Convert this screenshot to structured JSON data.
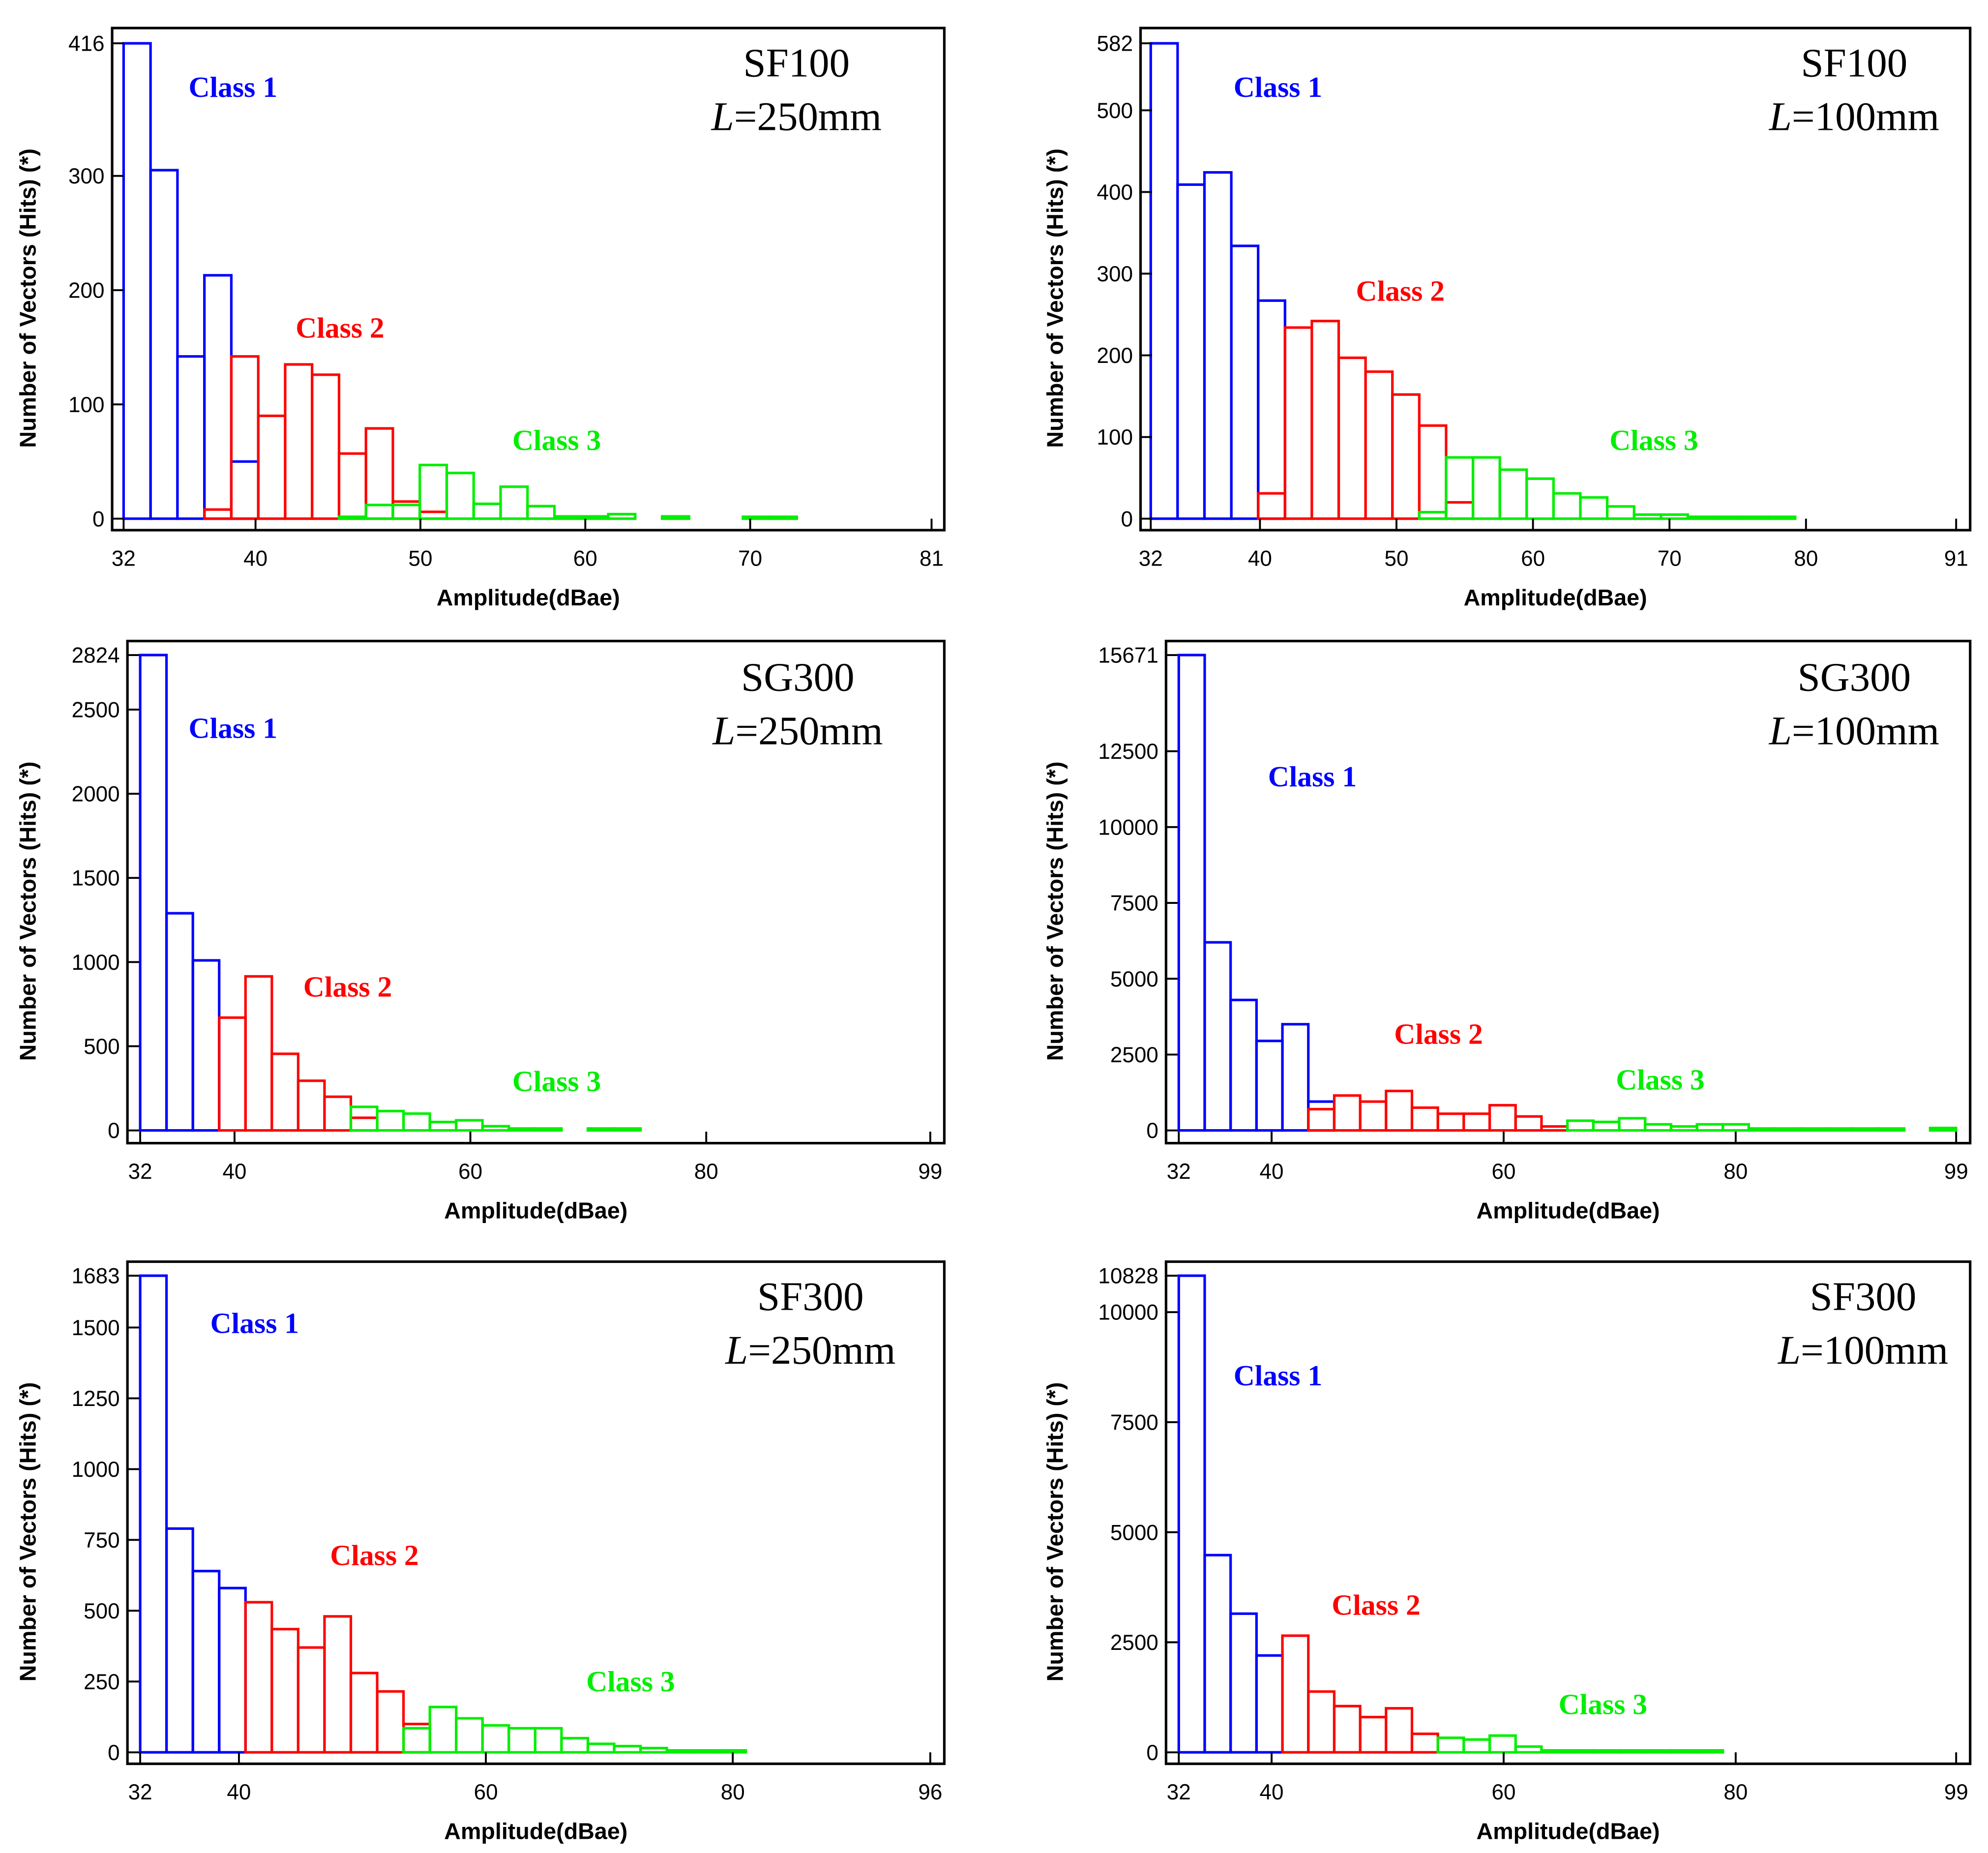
{
  "colors": {
    "class1": "#0000ff",
    "class2": "#ff0000",
    "class3": "#00ee00",
    "axis": "#000000"
  },
  "chart_data": [
    {
      "type": "bar",
      "title": "SF100",
      "length_var": "L",
      "length_value": "=250mm",
      "xlabel": "Amplitude(dBae)",
      "ylabel": "Number of Vectors (Hits) (*)",
      "xlim": [
        32,
        81
      ],
      "ylim": [
        0,
        416
      ],
      "bin_width": 1.633,
      "xticks": [
        "32",
        "40",
        "50",
        "60",
        "70",
        "81"
      ],
      "yticks": [
        "0",
        "100",
        "200",
        "300",
        "416"
      ],
      "series": [
        {
          "name": "Class 1",
          "color": "#0000ff",
          "values": [
            416,
            305,
            142,
            213,
            50
          ]
        },
        {
          "name": "Class 2",
          "color": "#ff0000",
          "values": [
            0,
            0,
            0,
            8,
            142,
            90,
            135,
            126,
            57,
            79,
            15,
            6
          ]
        },
        {
          "name": "Class 3",
          "color": "#00ee00",
          "values": [
            0,
            0,
            0,
            0,
            0,
            0,
            0,
            0,
            1,
            12,
            12,
            47,
            40,
            13,
            28,
            11,
            2,
            2,
            4,
            0,
            2,
            0,
            0,
            1,
            1
          ]
        }
      ]
    },
    {
      "type": "bar",
      "title": "SF100",
      "length_var": "L",
      "length_value": "=100mm",
      "xlabel": "Amplitude(dBae)",
      "ylabel": "Number of Vectors (Hits) (*)",
      "xlim": [
        32,
        91
      ],
      "ylim": [
        0,
        582
      ],
      "bin_width": 1.967,
      "xticks": [
        "32",
        "40",
        "50",
        "60",
        "70",
        "80",
        "91"
      ],
      "yticks": [
        "0",
        "100",
        "200",
        "300",
        "400",
        "500",
        "582"
      ],
      "series": [
        {
          "name": "Class 1",
          "color": "#0000ff",
          "values": [
            582,
            409,
            424,
            334,
            267
          ]
        },
        {
          "name": "Class 2",
          "color": "#ff0000",
          "values": [
            0,
            0,
            0,
            0,
            31,
            234,
            242,
            197,
            180,
            152,
            114,
            20
          ]
        },
        {
          "name": "Class 3",
          "color": "#00ee00",
          "values": [
            0,
            0,
            0,
            0,
            0,
            0,
            0,
            0,
            0,
            0,
            8,
            75,
            75,
            60,
            49,
            31,
            26,
            15,
            5,
            5,
            1,
            1,
            1,
            1
          ]
        }
      ]
    },
    {
      "type": "bar",
      "title": "SG300",
      "length_var": "L",
      "length_value": "=250mm",
      "xlabel": "Amplitude(dBae)",
      "ylabel": "Number of Vectors (Hits) (*)",
      "xlim": [
        32,
        99
      ],
      "ylim": [
        0,
        2824
      ],
      "bin_width": 2.233,
      "xticks": [
        "32",
        "40",
        "60",
        "80",
        "99"
      ],
      "yticks": [
        "0",
        "500",
        "1000",
        "1500",
        "2000",
        "2500",
        "2824"
      ],
      "series": [
        {
          "name": "Class 1",
          "color": "#0000ff",
          "values": [
            2824,
            1290,
            1010
          ]
        },
        {
          "name": "Class 2",
          "color": "#ff0000",
          "values": [
            0,
            0,
            0,
            670,
            915,
            455,
            295,
            200,
            75
          ]
        },
        {
          "name": "Class 3",
          "color": "#00ee00",
          "values": [
            0,
            0,
            0,
            0,
            0,
            0,
            0,
            0,
            140,
            115,
            100,
            50,
            60,
            25,
            10,
            2,
            0,
            2,
            2
          ]
        }
      ]
    },
    {
      "type": "bar",
      "title": "SG300",
      "length_var": "L",
      "length_value": "=100mm",
      "xlabel": "Amplitude(dBae)",
      "ylabel": "Number of Vectors (Hits) (*)",
      "xlim": [
        32,
        99
      ],
      "ylim": [
        0,
        15671
      ],
      "bin_width": 2.233,
      "xticks": [
        "32",
        "40",
        "60",
        "80",
        "99"
      ],
      "yticks": [
        "0",
        "2500",
        "5000",
        "7500",
        "10000",
        "12500",
        "15671"
      ],
      "series": [
        {
          "name": "Class 1",
          "color": "#0000ff",
          "values": [
            15671,
            6200,
            4300,
            2950,
            3500,
            950
          ]
        },
        {
          "name": "Class 2",
          "color": "#ff0000",
          "values": [
            0,
            0,
            0,
            0,
            0,
            700,
            1150,
            950,
            1300,
            750,
            550,
            550,
            830,
            460,
            130
          ]
        },
        {
          "name": "Class 3",
          "color": "#00ee00",
          "values": [
            0,
            0,
            0,
            0,
            0,
            0,
            0,
            0,
            0,
            0,
            0,
            0,
            0,
            0,
            0,
            320,
            280,
            400,
            200,
            130,
            200,
            200,
            60,
            60,
            10,
            60,
            10,
            10,
            0,
            80
          ]
        }
      ]
    },
    {
      "type": "bar",
      "title": "SF300",
      "length_var": "L",
      "length_value": "=250mm",
      "xlabel": "Amplitude(dBae)",
      "ylabel": "Number of Vectors (Hits) (*)",
      "xlim": [
        32,
        96
      ],
      "ylim": [
        0,
        1683
      ],
      "bin_width": 2.133,
      "xticks": [
        "32",
        "40",
        "60",
        "80",
        "96"
      ],
      "yticks": [
        "0",
        "250",
        "500",
        "750",
        "1000",
        "1250",
        "1500",
        "1683"
      ],
      "series": [
        {
          "name": "Class 1",
          "color": "#0000ff",
          "values": [
            1683,
            790,
            640,
            580
          ]
        },
        {
          "name": "Class 2",
          "color": "#ff0000",
          "values": [
            0,
            0,
            0,
            0,
            530,
            435,
            370,
            480,
            280,
            215,
            100
          ]
        },
        {
          "name": "Class 3",
          "color": "#00ee00",
          "values": [
            0,
            0,
            0,
            0,
            0,
            0,
            0,
            0,
            0,
            0,
            85,
            160,
            120,
            95,
            85,
            85,
            50,
            30,
            22,
            15,
            6,
            6,
            2
          ]
        }
      ]
    },
    {
      "type": "bar",
      "title": "SF300",
      "length_var": "L",
      "length_value": "=100mm",
      "xlabel": "Amplitude(dBae)",
      "ylabel": "Number of Vectors (Hits) (*)",
      "xlim": [
        32,
        99
      ],
      "ylim": [
        0,
        10828
      ],
      "bin_width": 2.233,
      "xticks": [
        "32",
        "40",
        "60",
        "80",
        "99"
      ],
      "yticks": [
        "0",
        "2500",
        "5000",
        "7500",
        "10000",
        "10828"
      ],
      "series": [
        {
          "name": "Class 1",
          "color": "#0000ff",
          "values": [
            10828,
            4480,
            3150,
            2200
          ]
        },
        {
          "name": "Class 2",
          "color": "#ff0000",
          "values": [
            0,
            0,
            0,
            0,
            2650,
            1380,
            1050,
            800,
            1000,
            420
          ]
        },
        {
          "name": "Class 3",
          "color": "#00ee00",
          "values": [
            0,
            0,
            0,
            0,
            0,
            0,
            0,
            0,
            0,
            0,
            330,
            290,
            380,
            130,
            40,
            40,
            40,
            40,
            10,
            5,
            5
          ]
        }
      ]
    }
  ]
}
